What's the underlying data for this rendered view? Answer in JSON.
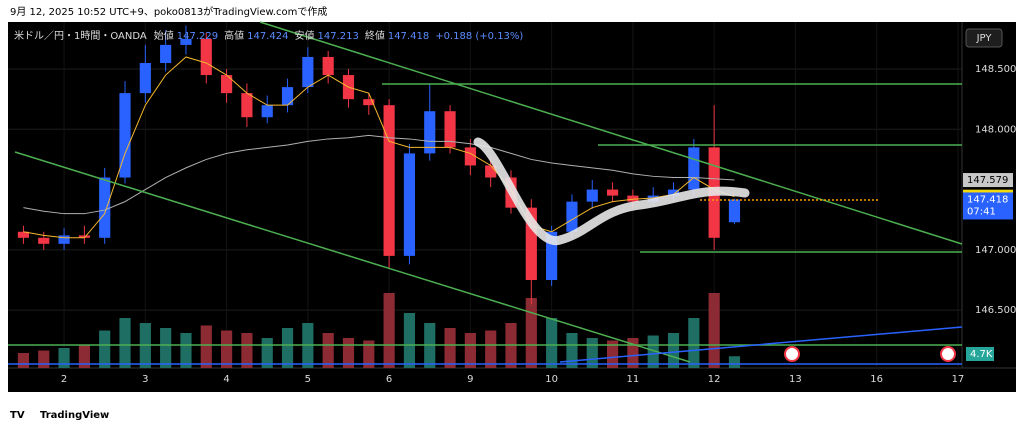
{
  "header": {
    "caption": "9月 12, 2025 10:52 UTC+9、poko0813がTradingView.comで作成"
  },
  "legend": {
    "symbol": "米ドル／円・1時間・OANDA",
    "fields": [
      {
        "label": "始値",
        "value": "147.229"
      },
      {
        "label": "高値",
        "value": "147.424"
      },
      {
        "label": "安値",
        "value": "147.213"
      },
      {
        "label": "終値",
        "value": "147.418"
      }
    ],
    "change": "+0.188 (+0.13%)"
  },
  "currency": "JPY",
  "countdown": "07:41",
  "brand": "TradingView",
  "chart_data": {
    "type": "candlestick",
    "x": [
      -0.5,
      -0.25,
      0,
      0.25,
      0.5,
      0.75,
      1,
      1.25,
      1.5,
      1.75,
      2,
      2.25,
      2.5,
      2.75,
      3,
      3.25,
      3.5,
      3.75,
      4,
      4.25,
      4.5,
      4.75,
      5,
      5.25,
      5.5,
      5.75,
      6,
      6.25,
      6.5,
      6.75,
      7,
      7.25,
      7.5,
      7.75,
      8,
      8.25
    ],
    "open": [
      147.15,
      147.1,
      147.05,
      147.12,
      147.1,
      147.6,
      148.3,
      148.55,
      148.7,
      148.75,
      148.45,
      148.3,
      148.1,
      148.2,
      148.35,
      148.6,
      148.45,
      148.25,
      148.2,
      146.95,
      147.8,
      148.15,
      147.85,
      147.7,
      147.6,
      147.35,
      146.75,
      147.15,
      147.4,
      147.5,
      147.45,
      147.4,
      147.45,
      147.5,
      147.85,
      147.229
    ],
    "high": [
      147.2,
      147.15,
      147.18,
      147.2,
      147.68,
      148.4,
      148.7,
      148.82,
      148.86,
      148.8,
      148.5,
      148.38,
      148.28,
      148.42,
      148.68,
      148.65,
      148.5,
      148.3,
      148.25,
      147.88,
      148.38,
      148.2,
      147.92,
      147.78,
      147.66,
      147.42,
      147.2,
      147.46,
      147.58,
      147.56,
      147.5,
      147.52,
      147.56,
      147.92,
      148.2,
      147.424
    ],
    "low": [
      147.05,
      147.0,
      147.0,
      147.05,
      147.05,
      147.55,
      148.22,
      148.48,
      148.62,
      148.38,
      148.22,
      148.02,
      148.05,
      148.14,
      148.3,
      148.38,
      148.18,
      148.12,
      146.85,
      146.88,
      147.74,
      147.8,
      147.62,
      147.52,
      147.3,
      146.55,
      146.7,
      147.1,
      147.34,
      147.4,
      147.35,
      147.36,
      147.4,
      147.45,
      147.0,
      147.213
    ],
    "close": [
      147.1,
      147.05,
      147.12,
      147.1,
      147.6,
      148.3,
      148.55,
      148.7,
      148.75,
      148.45,
      148.3,
      148.1,
      148.2,
      148.35,
      148.6,
      148.45,
      148.25,
      148.2,
      146.95,
      147.8,
      148.15,
      147.85,
      147.7,
      147.6,
      147.35,
      146.75,
      147.15,
      147.4,
      147.5,
      147.45,
      147.4,
      147.45,
      147.5,
      147.85,
      147.1,
      147.418
    ],
    "up_color": "#2962ff",
    "down_color": "#f23645",
    "overlays": [
      {
        "color": "#f5b82e",
        "values": [
          147.15,
          147.12,
          147.1,
          147.1,
          147.3,
          147.8,
          148.2,
          148.45,
          148.6,
          148.55,
          148.45,
          148.3,
          148.2,
          148.2,
          148.35,
          148.45,
          148.35,
          148.3,
          147.9,
          147.85,
          147.85,
          147.85,
          147.8,
          147.7,
          147.5,
          147.2,
          147.15,
          147.25,
          147.35,
          147.4,
          147.42,
          147.43,
          147.46,
          147.6,
          147.5,
          147.441
        ]
      },
      {
        "color": "#b0b0b0",
        "values": [
          147.35,
          147.32,
          147.3,
          147.3,
          147.33,
          147.4,
          147.5,
          147.6,
          147.68,
          147.75,
          147.8,
          147.83,
          147.85,
          147.87,
          147.9,
          147.92,
          147.93,
          147.95,
          147.93,
          147.92,
          147.9,
          147.9,
          147.88,
          147.85,
          147.8,
          147.75,
          147.72,
          147.7,
          147.68,
          147.66,
          147.63,
          147.61,
          147.6,
          147.6,
          147.59,
          147.579
        ]
      }
    ],
    "volume": [
      6000,
      7000,
      8000,
      9000,
      15000,
      20000,
      18000,
      16000,
      14000,
      17000,
      15000,
      14000,
      12000,
      16000,
      18000,
      14000,
      12000,
      11000,
      30000,
      22000,
      18000,
      16000,
      14000,
      15000,
      18000,
      28000,
      20000,
      14000,
      12000,
      11000,
      12000,
      13000,
      14000,
      20000,
      30000,
      4700
    ],
    "volume_last_label": "4.7K",
    "xlim": [
      -0.69,
      11.05
    ],
    "xticks": [
      {
        "value": 0,
        "label": "2"
      },
      {
        "value": 1,
        "label": "3"
      },
      {
        "value": 2,
        "label": "4"
      },
      {
        "value": 3,
        "label": "5"
      },
      {
        "value": 4,
        "label": "6"
      },
      {
        "value": 5,
        "label": "9"
      },
      {
        "value": 6,
        "label": "10"
      },
      {
        "value": 7,
        "label": "11"
      },
      {
        "value": 8,
        "label": "12"
      },
      {
        "value": 9,
        "label": "13"
      },
      {
        "value": 10,
        "label": "16"
      },
      {
        "value": 11,
        "label": "17"
      }
    ],
    "ylim": [
      146.02,
      148.89
    ],
    "yticks": [
      {
        "value": 146.5,
        "label": "146.500"
      },
      {
        "value": 147,
        "label": "147.000"
      },
      {
        "value": 148,
        "label": "148.000"
      },
      {
        "value": 148.5,
        "label": "148.500"
      }
    ],
    "grid": true
  }
}
